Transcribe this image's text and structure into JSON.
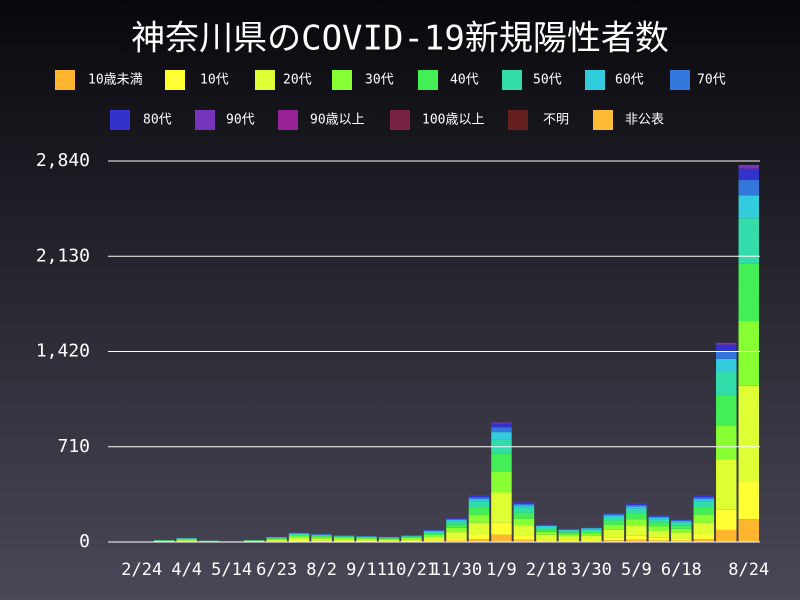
{
  "chart_data": {
    "type": "stacked_bar",
    "title": "神奈川県のCOVID-19新規陽性者数",
    "categories": [
      null,
      "2/24",
      null,
      "4/4",
      null,
      "5/14",
      null,
      "6/23",
      null,
      "8/2",
      null,
      "9/11",
      null,
      "10/21",
      null,
      "11/30",
      null,
      "1/9",
      null,
      "2/18",
      null,
      "3/30",
      null,
      "5/9",
      null,
      "6/18",
      null,
      null,
      "8/24"
    ],
    "ylim": [
      0,
      2840
    ],
    "yticks": [
      0,
      710,
      {
        "value": 1420,
        "label": "1,420"
      },
      {
        "value": 2130,
        "label": "2,130"
      },
      {
        "value": 2840,
        "label": "2,840"
      }
    ],
    "grid": true,
    "series": [
      {
        "name": "10歳未満",
        "color": "#ffb52e",
        "values": [
          0,
          0,
          1,
          2,
          1,
          0,
          1,
          2,
          4,
          4,
          3,
          3,
          2,
          3,
          5,
          11,
          21,
          54,
          18,
          8,
          6,
          7,
          13,
          17,
          12,
          10,
          21,
          90,
          170
        ]
      },
      {
        "name": "10代",
        "color": "#ffff33",
        "values": [
          0,
          0,
          2,
          3,
          1,
          1,
          2,
          4,
          7,
          6,
          5,
          5,
          4,
          5,
          9,
          18,
          35,
          90,
          30,
          13,
          10,
          11,
          22,
          29,
          20,
          17,
          35,
          150,
          284
        ]
      },
      {
        "name": "20代",
        "color": "#ddff33",
        "values": [
          0,
          1,
          4,
          8,
          3,
          1,
          4,
          10,
          18,
          15,
          13,
          11,
          10,
          13,
          23,
          45,
          88,
          225,
          75,
          33,
          25,
          28,
          55,
          73,
          50,
          43,
          88,
          375,
          710
        ]
      },
      {
        "name": "30代",
        "color": "#88ff33",
        "values": [
          0,
          0,
          3,
          5,
          2,
          1,
          3,
          7,
          12,
          10,
          9,
          8,
          7,
          9,
          15,
          31,
          60,
          153,
          51,
          22,
          17,
          19,
          37,
          49,
          34,
          29,
          60,
          255,
          483
        ]
      },
      {
        "name": "40代",
        "color": "#44ee55",
        "values": [
          0,
          1,
          2,
          5,
          2,
          1,
          2,
          6,
          11,
          9,
          8,
          7,
          6,
          8,
          14,
          27,
          53,
          135,
          45,
          20,
          15,
          17,
          33,
          44,
          30,
          26,
          53,
          225,
          426
        ]
      },
      {
        "name": "50代",
        "color": "#33ddaa",
        "values": [
          0,
          0,
          2,
          4,
          1,
          1,
          2,
          5,
          8,
          7,
          6,
          5,
          5,
          6,
          11,
          22,
          42,
          108,
          36,
          16,
          12,
          13,
          26,
          35,
          24,
          20,
          42,
          180,
          341
        ]
      },
      {
        "name": "60代",
        "color": "#33ccdd",
        "values": [
          0,
          0,
          1,
          2,
          0,
          0,
          1,
          2,
          4,
          4,
          3,
          3,
          2,
          3,
          5,
          11,
          21,
          54,
          18,
          8,
          6,
          7,
          13,
          17,
          12,
          10,
          21,
          90,
          170
        ]
      },
      {
        "name": "70代",
        "color": "#3377dd",
        "values": [
          0,
          0,
          0,
          1,
          0,
          0,
          0,
          2,
          3,
          2,
          2,
          2,
          2,
          2,
          4,
          7,
          14,
          36,
          12,
          5,
          4,
          4,
          9,
          12,
          8,
          7,
          14,
          60,
          114
        ]
      },
      {
        "name": "80代",
        "color": "#3333cc",
        "values": [
          0,
          0,
          0,
          0,
          0,
          0,
          0,
          1,
          2,
          2,
          1,
          1,
          1,
          1,
          3,
          5,
          11,
          27,
          9,
          4,
          3,
          3,
          7,
          9,
          6,
          5,
          11,
          45,
          85
        ]
      },
      {
        "name": "90代",
        "color": "#7733bb",
        "values": [
          0,
          0,
          0,
          0,
          0,
          0,
          0,
          1,
          1,
          1,
          0,
          0,
          1,
          0,
          1,
          2,
          3,
          9,
          3,
          1,
          1,
          1,
          2,
          3,
          2,
          2,
          3,
          15,
          28
        ]
      },
      {
        "name": "90歳以上",
        "color": "#992299",
        "values": [
          0,
          0,
          0,
          0,
          0,
          0,
          0,
          0,
          0,
          0,
          0,
          0,
          0,
          0,
          0,
          0,
          0,
          0,
          0,
          0,
          0,
          0,
          0,
          0,
          0,
          0,
          0,
          0,
          0
        ]
      },
      {
        "name": "100歳以上",
        "color": "#772244",
        "values": [
          0,
          0,
          0,
          0,
          0,
          0,
          0,
          0,
          0,
          0,
          0,
          0,
          0,
          0,
          0,
          0,
          0,
          0,
          0,
          0,
          0,
          0,
          0,
          0,
          0,
          0,
          0,
          0,
          0
        ]
      },
      {
        "name": "不明",
        "color": "#661f1f",
        "values": [
          0,
          0,
          0,
          0,
          0,
          0,
          0,
          0,
          0,
          0,
          0,
          0,
          0,
          0,
          0,
          0,
          0,
          0,
          0,
          0,
          0,
          0,
          0,
          0,
          0,
          0,
          0,
          0,
          0
        ]
      },
      {
        "name": "非公表",
        "color": "#ffbb33",
        "values": [
          0,
          0,
          0,
          0,
          0,
          0,
          0,
          0,
          0,
          0,
          0,
          0,
          0,
          0,
          0,
          0,
          0,
          0,
          0,
          0,
          0,
          0,
          0,
          0,
          0,
          0,
          0,
          0,
          0
        ]
      }
    ]
  }
}
